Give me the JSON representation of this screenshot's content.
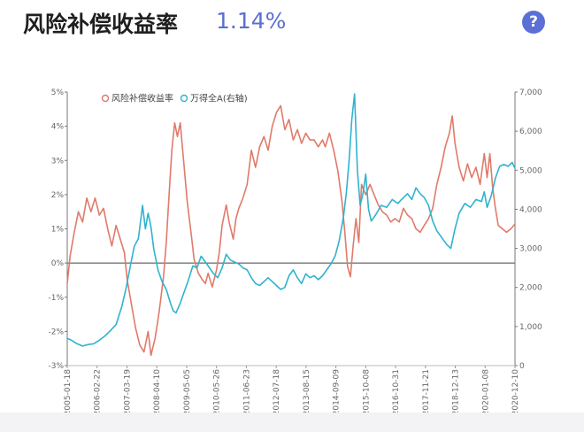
{
  "header": {
    "title": "风险补偿收益率",
    "value": "1.14%",
    "help_icon": "question-mark-icon",
    "help_symbol": "?"
  },
  "colors": {
    "risk": "#e07a6a",
    "index": "#2fb3cf",
    "title_value": "#5a6fd0",
    "help_bg": "#5b6fd6"
  },
  "chart_data": {
    "type": "line",
    "title": "风险补偿收益率",
    "legend": [
      "风险补偿收益率",
      "万得全A(右轴)"
    ],
    "legend_position": "top-left",
    "x_labels": [
      "2005-01-18",
      "2006-02-22",
      "2007-03-19",
      "2008-04-10",
      "2009-05-05",
      "2010-05-26",
      "2011-06-23",
      "2012-07-18",
      "2013-08-15",
      "2014-09-09",
      "2015-10-08",
      "2016-10-31",
      "2017-11-21",
      "2018-12-13",
      "2020-01-08",
      "2020-12-10"
    ],
    "y_left": {
      "ticks": [
        "5%",
        "4%",
        "3%",
        "2%",
        "1%",
        "0%",
        "-1%",
        "-2%",
        "-3%"
      ],
      "range": [
        -3,
        5
      ]
    },
    "y_right": {
      "ticks": [
        "7,000",
        "6,000",
        "5,000",
        "4,000",
        "3,000",
        "2,000",
        "1,000",
        "0"
      ],
      "range": [
        0,
        7000
      ]
    },
    "x_range": [
      2005.05,
      2021.1
    ],
    "series": [
      {
        "name": "风险补偿收益率",
        "axis": "left",
        "points": [
          [
            2005.05,
            -0.6
          ],
          [
            2005.15,
            0.2
          ],
          [
            2005.3,
            0.9
          ],
          [
            2005.45,
            1.5
          ],
          [
            2005.6,
            1.2
          ],
          [
            2005.75,
            1.9
          ],
          [
            2005.9,
            1.5
          ],
          [
            2006.05,
            1.9
          ],
          [
            2006.2,
            1.4
          ],
          [
            2006.35,
            1.6
          ],
          [
            2006.5,
            1.0
          ],
          [
            2006.65,
            0.5
          ],
          [
            2006.8,
            1.1
          ],
          [
            2006.95,
            0.7
          ],
          [
            2007.1,
            0.3
          ],
          [
            2007.2,
            -0.5
          ],
          [
            2007.35,
            -1.2
          ],
          [
            2007.5,
            -1.9
          ],
          [
            2007.65,
            -2.4
          ],
          [
            2007.8,
            -2.6
          ],
          [
            2007.95,
            -2.0
          ],
          [
            2008.05,
            -2.7
          ],
          [
            2008.2,
            -2.2
          ],
          [
            2008.35,
            -1.4
          ],
          [
            2008.5,
            -0.4
          ],
          [
            2008.6,
            0.6
          ],
          [
            2008.7,
            2.0
          ],
          [
            2008.8,
            3.3
          ],
          [
            2008.9,
            4.1
          ],
          [
            2009.0,
            3.7
          ],
          [
            2009.1,
            4.1
          ],
          [
            2009.2,
            3.2
          ],
          [
            2009.35,
            1.8
          ],
          [
            2009.5,
            0.8
          ],
          [
            2009.6,
            0.1
          ],
          [
            2009.75,
            -0.3
          ],
          [
            2009.9,
            -0.5
          ],
          [
            2010.0,
            -0.6
          ],
          [
            2010.1,
            -0.3
          ],
          [
            2010.25,
            -0.7
          ],
          [
            2010.4,
            -0.2
          ],
          [
            2010.5,
            0.3
          ],
          [
            2010.6,
            1.1
          ],
          [
            2010.75,
            1.7
          ],
          [
            2010.85,
            1.2
          ],
          [
            2011.0,
            0.7
          ],
          [
            2011.1,
            1.3
          ],
          [
            2011.2,
            1.6
          ],
          [
            2011.35,
            1.9
          ],
          [
            2011.5,
            2.3
          ],
          [
            2011.65,
            3.3
          ],
          [
            2011.8,
            2.8
          ],
          [
            2011.95,
            3.4
          ],
          [
            2012.1,
            3.7
          ],
          [
            2012.25,
            3.3
          ],
          [
            2012.4,
            4.0
          ],
          [
            2012.55,
            4.4
          ],
          [
            2012.7,
            4.6
          ],
          [
            2012.85,
            3.9
          ],
          [
            2013.0,
            4.2
          ],
          [
            2013.15,
            3.6
          ],
          [
            2013.3,
            3.9
          ],
          [
            2013.45,
            3.5
          ],
          [
            2013.6,
            3.8
          ],
          [
            2013.75,
            3.6
          ],
          [
            2013.9,
            3.6
          ],
          [
            2014.05,
            3.4
          ],
          [
            2014.2,
            3.6
          ],
          [
            2014.3,
            3.4
          ],
          [
            2014.45,
            3.8
          ],
          [
            2014.6,
            3.3
          ],
          [
            2014.75,
            2.7
          ],
          [
            2014.9,
            1.8
          ],
          [
            2015.0,
            0.9
          ],
          [
            2015.1,
            -0.1
          ],
          [
            2015.2,
            -0.4
          ],
          [
            2015.3,
            0.5
          ],
          [
            2015.4,
            1.3
          ],
          [
            2015.5,
            0.6
          ],
          [
            2015.6,
            2.3
          ],
          [
            2015.75,
            2.0
          ],
          [
            2015.9,
            2.3
          ],
          [
            2016.05,
            2.0
          ],
          [
            2016.2,
            1.7
          ],
          [
            2016.35,
            1.5
          ],
          [
            2016.5,
            1.4
          ],
          [
            2016.65,
            1.2
          ],
          [
            2016.8,
            1.3
          ],
          [
            2016.95,
            1.2
          ],
          [
            2017.1,
            1.6
          ],
          [
            2017.25,
            1.4
          ],
          [
            2017.4,
            1.3
          ],
          [
            2017.55,
            1.0
          ],
          [
            2017.7,
            0.9
          ],
          [
            2017.85,
            1.1
          ],
          [
            2018.0,
            1.3
          ],
          [
            2018.15,
            1.6
          ],
          [
            2018.3,
            2.3
          ],
          [
            2018.45,
            2.8
          ],
          [
            2018.6,
            3.4
          ],
          [
            2018.75,
            3.8
          ],
          [
            2018.85,
            4.3
          ],
          [
            2018.95,
            3.5
          ],
          [
            2019.1,
            2.8
          ],
          [
            2019.25,
            2.4
          ],
          [
            2019.4,
            2.9
          ],
          [
            2019.55,
            2.5
          ],
          [
            2019.7,
            2.8
          ],
          [
            2019.85,
            2.3
          ],
          [
            2020.0,
            3.2
          ],
          [
            2020.1,
            2.5
          ],
          [
            2020.2,
            3.2
          ],
          [
            2020.3,
            2.2
          ],
          [
            2020.4,
            1.6
          ],
          [
            2020.5,
            1.1
          ],
          [
            2020.65,
            1.0
          ],
          [
            2020.8,
            0.9
          ],
          [
            2020.95,
            1.0
          ],
          [
            2021.1,
            1.14
          ]
        ]
      },
      {
        "name": "万得全A(右轴)",
        "axis": "right",
        "points": [
          [
            2005.05,
            700
          ],
          [
            2005.2,
            650
          ],
          [
            2005.4,
            560
          ],
          [
            2005.6,
            500
          ],
          [
            2005.8,
            540
          ],
          [
            2006.0,
            560
          ],
          [
            2006.2,
            650
          ],
          [
            2006.4,
            760
          ],
          [
            2006.6,
            900
          ],
          [
            2006.8,
            1050
          ],
          [
            2007.0,
            1500
          ],
          [
            2007.15,
            1950
          ],
          [
            2007.3,
            2500
          ],
          [
            2007.45,
            3050
          ],
          [
            2007.6,
            3250
          ],
          [
            2007.75,
            4100
          ],
          [
            2007.85,
            3500
          ],
          [
            2007.95,
            3900
          ],
          [
            2008.05,
            3550
          ],
          [
            2008.15,
            3000
          ],
          [
            2008.3,
            2450
          ],
          [
            2008.45,
            2150
          ],
          [
            2008.6,
            1950
          ],
          [
            2008.75,
            1600
          ],
          [
            2008.85,
            1400
          ],
          [
            2008.95,
            1350
          ],
          [
            2009.1,
            1600
          ],
          [
            2009.25,
            1900
          ],
          [
            2009.4,
            2200
          ],
          [
            2009.55,
            2550
          ],
          [
            2009.7,
            2500
          ],
          [
            2009.85,
            2800
          ],
          [
            2010.0,
            2650
          ],
          [
            2010.15,
            2500
          ],
          [
            2010.3,
            2350
          ],
          [
            2010.45,
            2250
          ],
          [
            2010.6,
            2500
          ],
          [
            2010.75,
            2850
          ],
          [
            2010.9,
            2700
          ],
          [
            2011.05,
            2650
          ],
          [
            2011.2,
            2600
          ],
          [
            2011.35,
            2500
          ],
          [
            2011.5,
            2450
          ],
          [
            2011.65,
            2250
          ],
          [
            2011.8,
            2100
          ],
          [
            2011.95,
            2050
          ],
          [
            2012.1,
            2150
          ],
          [
            2012.25,
            2250
          ],
          [
            2012.4,
            2150
          ],
          [
            2012.55,
            2050
          ],
          [
            2012.7,
            1950
          ],
          [
            2012.85,
            2000
          ],
          [
            2013.0,
            2300
          ],
          [
            2013.15,
            2450
          ],
          [
            2013.3,
            2250
          ],
          [
            2013.45,
            2100
          ],
          [
            2013.6,
            2350
          ],
          [
            2013.75,
            2250
          ],
          [
            2013.9,
            2300
          ],
          [
            2014.05,
            2200
          ],
          [
            2014.2,
            2300
          ],
          [
            2014.35,
            2450
          ],
          [
            2014.5,
            2600
          ],
          [
            2014.65,
            2800
          ],
          [
            2014.8,
            3200
          ],
          [
            2014.95,
            3800
          ],
          [
            2015.05,
            4400
          ],
          [
            2015.15,
            5200
          ],
          [
            2015.25,
            6300
          ],
          [
            2015.35,
            6950
          ],
          [
            2015.45,
            5000
          ],
          [
            2015.55,
            4100
          ],
          [
            2015.65,
            4400
          ],
          [
            2015.75,
            4900
          ],
          [
            2015.85,
            4000
          ],
          [
            2015.95,
            3700
          ],
          [
            2016.1,
            3850
          ],
          [
            2016.3,
            4100
          ],
          [
            2016.5,
            4050
          ],
          [
            2016.7,
            4250
          ],
          [
            2016.9,
            4150
          ],
          [
            2017.1,
            4300
          ],
          [
            2017.25,
            4400
          ],
          [
            2017.4,
            4250
          ],
          [
            2017.55,
            4550
          ],
          [
            2017.7,
            4400
          ],
          [
            2017.85,
            4300
          ],
          [
            2018.0,
            4100
          ],
          [
            2018.15,
            3700
          ],
          [
            2018.3,
            3450
          ],
          [
            2018.5,
            3250
          ],
          [
            2018.65,
            3100
          ],
          [
            2018.8,
            3000
          ],
          [
            2018.95,
            3500
          ],
          [
            2019.1,
            3900
          ],
          [
            2019.3,
            4150
          ],
          [
            2019.5,
            4050
          ],
          [
            2019.7,
            4250
          ],
          [
            2019.9,
            4200
          ],
          [
            2020.0,
            4450
          ],
          [
            2020.1,
            4050
          ],
          [
            2020.25,
            4350
          ],
          [
            2020.4,
            4800
          ],
          [
            2020.55,
            5100
          ],
          [
            2020.7,
            5150
          ],
          [
            2020.85,
            5100
          ],
          [
            2021.0,
            5200
          ],
          [
            2021.1,
            5050
          ]
        ]
      }
    ]
  }
}
